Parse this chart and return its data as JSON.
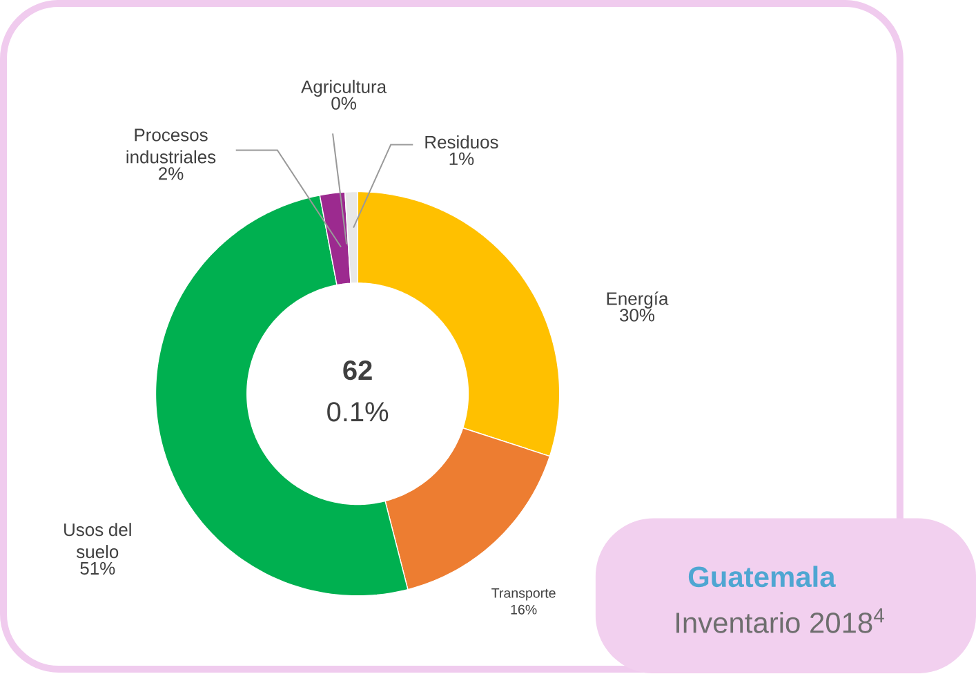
{
  "chart_data": {
    "type": "donut",
    "title": "Guatemala",
    "subtitle": "Inventario 2018$^{4}$",
    "categories": [
      "Energía",
      "Transporte",
      "Usos del suelo",
      "Procesos industriales",
      "Agricultura",
      "Residuos"
    ],
    "values": [
      30,
      16,
      51,
      2,
      0,
      1
    ],
    "value_labels": [
      "30%",
      "16%",
      "51%",
      "2%",
      "0%",
      "1%"
    ],
    "colors": [
      "#ffc000",
      "#ed7d31",
      "#00b050",
      "#9c2a8f",
      "#7030a0",
      "#e8e8e8"
    ],
    "annotations": [
      "62",
      "0.1%"
    ]
  }
}
